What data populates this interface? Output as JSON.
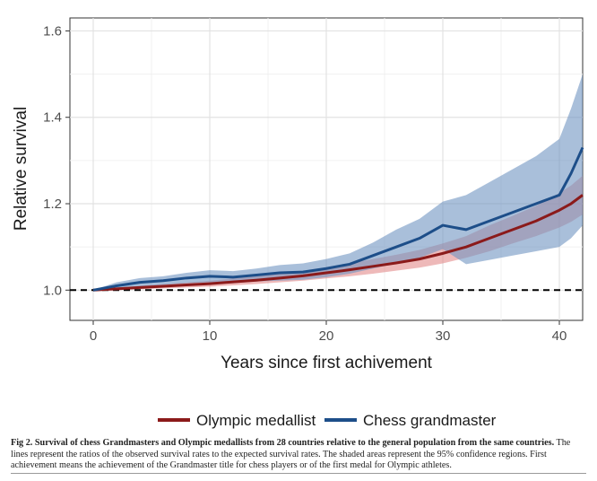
{
  "chart_data": {
    "type": "line",
    "xlabel": "Years since first achivement",
    "ylabel": "Relative survival",
    "xlim": [
      -2,
      42
    ],
    "ylim": [
      0.93,
      1.63
    ],
    "x_ticks": [
      0,
      10,
      20,
      30,
      40
    ],
    "y_ticks": [
      1.0,
      1.2,
      1.4,
      1.6
    ],
    "y_tick_labels": [
      "1.0",
      "1.2",
      "1.4",
      "1.6"
    ],
    "grid": true,
    "reference_line": {
      "y": 1.0,
      "style": "dashed"
    },
    "legend_position": "bottom",
    "x": [
      0,
      2,
      4,
      6,
      8,
      10,
      12,
      14,
      16,
      18,
      20,
      22,
      24,
      26,
      28,
      30,
      32,
      34,
      36,
      38,
      40,
      41,
      42
    ],
    "series": [
      {
        "name": "Olympic medallist",
        "color": "#8b1a1a",
        "band_color": "#e08080",
        "values": [
          1.0,
          1.003,
          1.006,
          1.009,
          1.012,
          1.015,
          1.019,
          1.023,
          1.028,
          1.033,
          1.04,
          1.047,
          1.055,
          1.063,
          1.072,
          1.085,
          1.1,
          1.12,
          1.14,
          1.16,
          1.185,
          1.2,
          1.22
        ],
        "lower": [
          1.0,
          1.0,
          1.002,
          1.004,
          1.006,
          1.008,
          1.011,
          1.014,
          1.018,
          1.022,
          1.027,
          1.032,
          1.038,
          1.045,
          1.052,
          1.062,
          1.075,
          1.09,
          1.108,
          1.125,
          1.145,
          1.158,
          1.175
        ],
        "upper": [
          1.0,
          1.006,
          1.01,
          1.014,
          1.018,
          1.022,
          1.027,
          1.032,
          1.038,
          1.044,
          1.053,
          1.062,
          1.072,
          1.082,
          1.093,
          1.108,
          1.125,
          1.15,
          1.172,
          1.195,
          1.225,
          1.242,
          1.265
        ]
      },
      {
        "name": "Chess grandmaster",
        "color": "#1d4e89",
        "band_color": "#6f95c2",
        "values": [
          1.0,
          1.01,
          1.018,
          1.022,
          1.028,
          1.032,
          1.03,
          1.035,
          1.04,
          1.042,
          1.05,
          1.06,
          1.08,
          1.1,
          1.12,
          1.15,
          1.14,
          1.16,
          1.18,
          1.2,
          1.22,
          1.27,
          1.33
        ],
        "lower": [
          1.0,
          1.003,
          1.008,
          1.012,
          1.016,
          1.018,
          1.016,
          1.02,
          1.022,
          1.024,
          1.03,
          1.038,
          1.05,
          1.062,
          1.075,
          1.095,
          1.06,
          1.07,
          1.08,
          1.09,
          1.1,
          1.12,
          1.15
        ],
        "upper": [
          1.0,
          1.018,
          1.028,
          1.032,
          1.04,
          1.046,
          1.044,
          1.05,
          1.058,
          1.062,
          1.072,
          1.085,
          1.11,
          1.14,
          1.165,
          1.205,
          1.22,
          1.25,
          1.28,
          1.31,
          1.35,
          1.42,
          1.5
        ]
      }
    ]
  },
  "caption": {
    "title": "Fig 2. Survival of chess Grandmasters and Olympic medallists from 28 countries relative to the general population from the same countries.",
    "body": " The lines represent the ratios of the observed survival rates to the expected survival rates. The shaded areas represent the 95% confidence regions. First achievement means the achievement of the Grandmaster title for chess players or of the first medal for Olympic athletes."
  }
}
